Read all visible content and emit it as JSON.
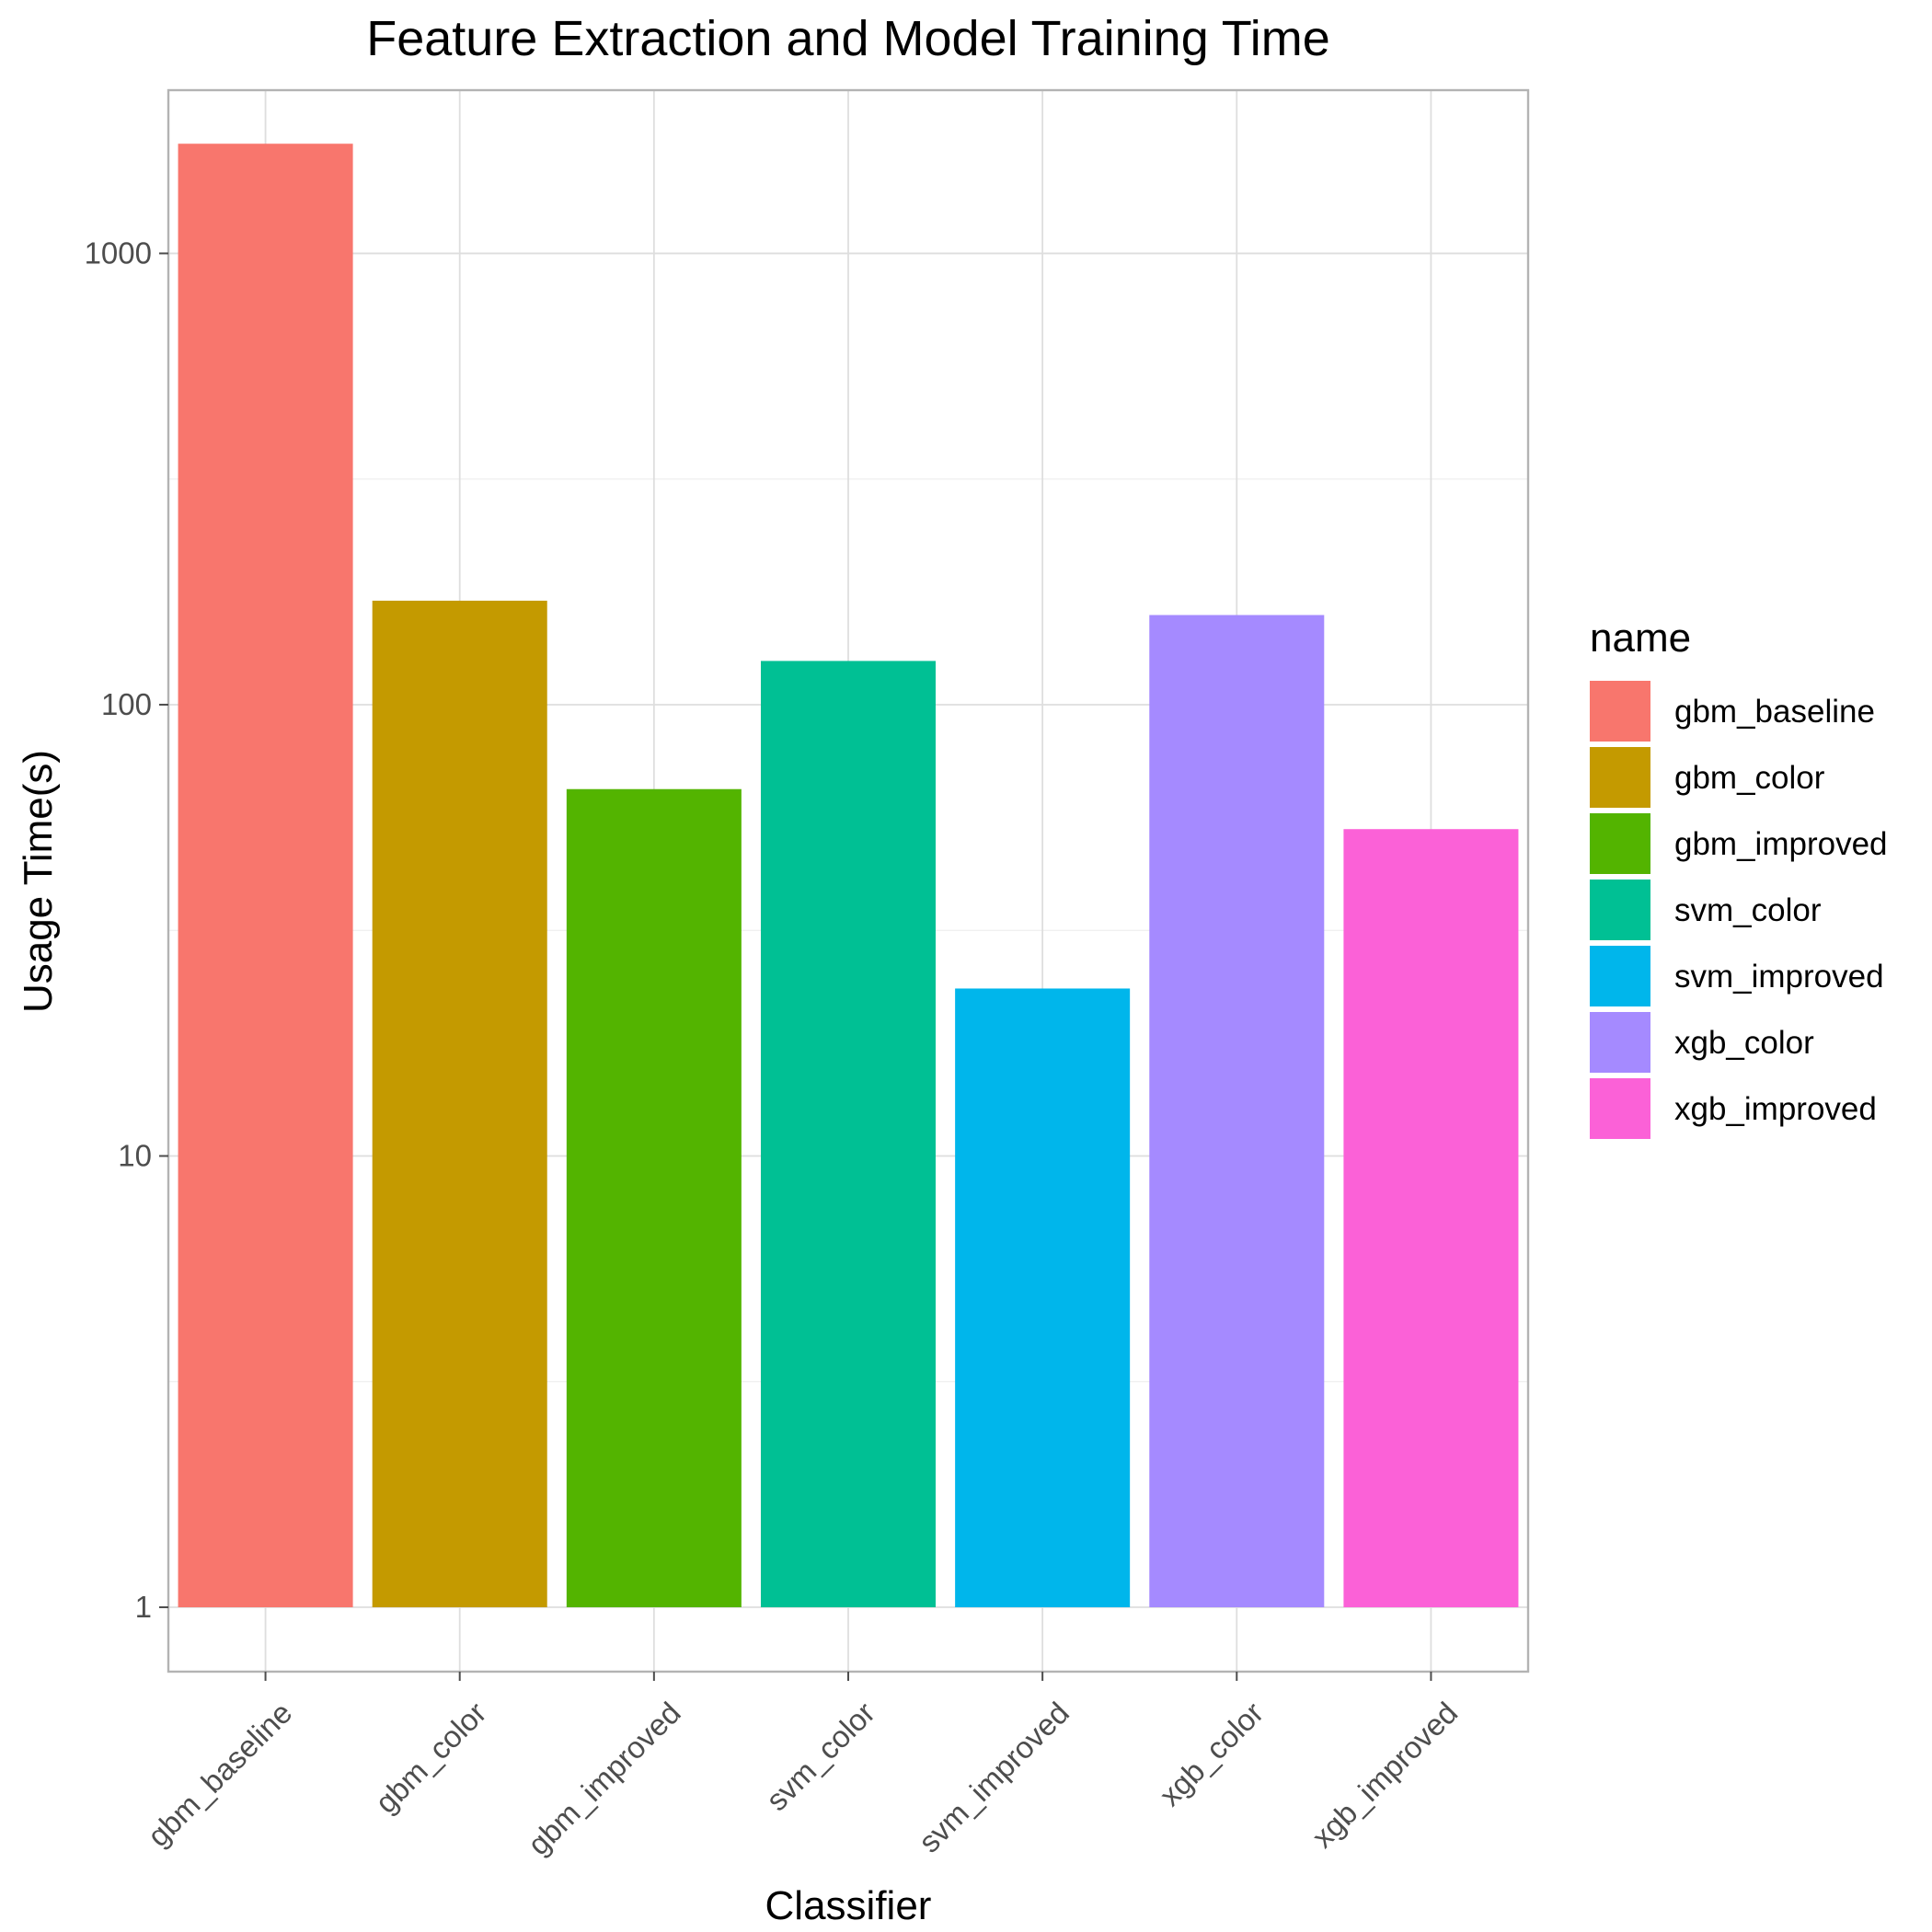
{
  "chart_data": {
    "type": "bar",
    "title": "Feature Extraction and Model Training Time",
    "xlabel": "Classifier",
    "ylabel": "Usage Time(s)",
    "y_scale": "log10",
    "ylim": [
      0.72,
      2300
    ],
    "yticks": [
      1,
      10,
      100,
      1000
    ],
    "ytick_labels": [
      "1",
      "10",
      "100",
      "1000"
    ],
    "grid": true,
    "legend": {
      "title": "name",
      "position": "right"
    },
    "categories": [
      "gbm_baseline",
      "gbm_color",
      "gbm_improved",
      "svm_color",
      "svm_improved",
      "xgb_color",
      "xgb_improved"
    ],
    "values": [
      1750,
      170,
      65,
      125,
      23.5,
      158,
      53
    ],
    "colors": [
      "#F8766D",
      "#C49A00",
      "#53B400",
      "#00C094",
      "#00B6EB",
      "#A58AFF",
      "#FB61D7"
    ]
  }
}
